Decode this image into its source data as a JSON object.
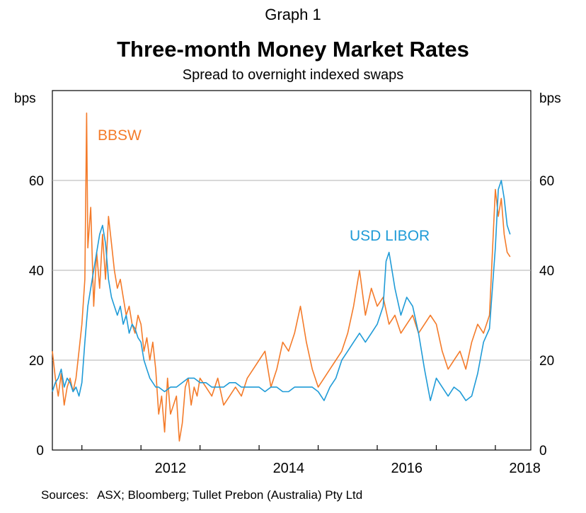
{
  "graph_label": "Graph 1",
  "title": "Three-month Money Market Rates",
  "subtitle": "Spread to overnight indexed swaps",
  "sources_label": "Sources:",
  "sources_text": "ASX; Bloomberg; Tullet Prebon (Australia) Pty Ltd",
  "chart_data": {
    "type": "line",
    "title": "Three-month Money Market Rates",
    "subtitle": "Spread to overnight indexed swaps",
    "ylabel_left": "bps",
    "ylabel_right": "bps",
    "ylim": [
      0,
      80
    ],
    "yticks": [
      0,
      20,
      40,
      60
    ],
    "xlim": [
      2010.5,
      2018.6
    ],
    "xticks": [
      2011,
      2012,
      2013,
      2014,
      2015,
      2016,
      2017,
      2018
    ],
    "xticklabels": [
      "2012",
      "2014",
      "2016",
      "2018"
    ],
    "grid": "horizontal",
    "colors": {
      "BBSW": "#f47b2a",
      "USD LIBOR": "#1f9bd7",
      "grid": "#b0b0b0"
    },
    "series": [
      {
        "name": "BBSW",
        "x": [
          2010.5,
          2010.55,
          2010.6,
          2010.65,
          2010.7,
          2010.75,
          2010.8,
          2010.85,
          2010.9,
          2010.95,
          2011.0,
          2011.05,
          2011.08,
          2011.1,
          2011.15,
          2011.2,
          2011.25,
          2011.3,
          2011.35,
          2011.4,
          2011.45,
          2011.5,
          2011.55,
          2011.6,
          2011.65,
          2011.7,
          2011.75,
          2011.8,
          2011.85,
          2011.9,
          2011.95,
          2012.0,
          2012.05,
          2012.1,
          2012.15,
          2012.2,
          2012.25,
          2012.3,
          2012.35,
          2012.4,
          2012.45,
          2012.5,
          2012.55,
          2012.6,
          2012.65,
          2012.7,
          2012.75,
          2012.8,
          2012.85,
          2012.9,
          2012.95,
          2013.0,
          2013.1,
          2013.2,
          2013.3,
          2013.4,
          2013.5,
          2013.6,
          2013.7,
          2013.8,
          2013.9,
          2014.0,
          2014.1,
          2014.2,
          2014.3,
          2014.4,
          2014.5,
          2014.6,
          2014.7,
          2014.8,
          2014.9,
          2015.0,
          2015.1,
          2015.2,
          2015.3,
          2015.4,
          2015.5,
          2015.6,
          2015.7,
          2015.8,
          2015.9,
          2016.0,
          2016.1,
          2016.2,
          2016.3,
          2016.4,
          2016.5,
          2016.6,
          2016.7,
          2016.8,
          2016.9,
          2017.0,
          2017.1,
          2017.2,
          2017.3,
          2017.4,
          2017.5,
          2017.6,
          2017.7,
          2017.8,
          2017.9,
          2018.0,
          2018.05,
          2018.1,
          2018.15,
          2018.2,
          2018.25
        ],
        "values": [
          22,
          16,
          12,
          17,
          10,
          14,
          16,
          13,
          16,
          22,
          28,
          38,
          75,
          45,
          54,
          32,
          44,
          36,
          48,
          38,
          52,
          46,
          40,
          36,
          38,
          34,
          30,
          32,
          28,
          26,
          30,
          28,
          22,
          25,
          20,
          24,
          18,
          8,
          12,
          4,
          16,
          8,
          10,
          12,
          2,
          6,
          14,
          16,
          10,
          14,
          12,
          16,
          14,
          12,
          16,
          10,
          12,
          14,
          12,
          16,
          18,
          20,
          22,
          14,
          18,
          24,
          22,
          26,
          32,
          24,
          18,
          14,
          16,
          18,
          20,
          22,
          26,
          32,
          40,
          30,
          36,
          32,
          34,
          28,
          30,
          26,
          28,
          30,
          26,
          28,
          30,
          28,
          22,
          18,
          20,
          22,
          18,
          24,
          28,
          26,
          30,
          58,
          52,
          56,
          48,
          44,
          43
        ]
      },
      {
        "name": "USD LIBOR",
        "x": [
          2010.5,
          2010.55,
          2010.6,
          2010.65,
          2010.7,
          2010.75,
          2010.8,
          2010.85,
          2010.9,
          2010.95,
          2011.0,
          2011.05,
          2011.1,
          2011.15,
          2011.2,
          2011.25,
          2011.3,
          2011.35,
          2011.4,
          2011.45,
          2011.5,
          2011.55,
          2011.6,
          2011.65,
          2011.7,
          2011.75,
          2011.8,
          2011.85,
          2011.9,
          2011.95,
          2012.0,
          2012.05,
          2012.1,
          2012.15,
          2012.2,
          2012.25,
          2012.3,
          2012.4,
          2012.5,
          2012.6,
          2012.7,
          2012.8,
          2012.9,
          2013.0,
          2013.1,
          2013.2,
          2013.3,
          2013.4,
          2013.5,
          2013.6,
          2013.7,
          2013.8,
          2013.9,
          2014.0,
          2014.1,
          2014.2,
          2014.3,
          2014.4,
          2014.5,
          2014.6,
          2014.7,
          2014.8,
          2014.9,
          2015.0,
          2015.1,
          2015.2,
          2015.3,
          2015.4,
          2015.5,
          2015.6,
          2015.7,
          2015.8,
          2015.9,
          2016.0,
          2016.05,
          2016.1,
          2016.15,
          2016.2,
          2016.25,
          2016.3,
          2016.4,
          2016.5,
          2016.6,
          2016.7,
          2016.8,
          2016.9,
          2017.0,
          2017.1,
          2017.2,
          2017.3,
          2017.4,
          2017.5,
          2017.6,
          2017.7,
          2017.8,
          2017.9,
          2018.0,
          2018.05,
          2018.1,
          2018.15,
          2018.2,
          2018.25
        ],
        "values": [
          13,
          15,
          16,
          18,
          14,
          16,
          15,
          13,
          14,
          12,
          15,
          24,
          32,
          36,
          40,
          44,
          48,
          50,
          46,
          38,
          34,
          32,
          30,
          32,
          28,
          30,
          26,
          28,
          27,
          25,
          24,
          20,
          18,
          16,
          15,
          14,
          14,
          13,
          14,
          14,
          15,
          16,
          16,
          15,
          15,
          14,
          14,
          14,
          15,
          15,
          14,
          14,
          14,
          14,
          13,
          14,
          14,
          13,
          13,
          14,
          14,
          14,
          14,
          13,
          11,
          14,
          16,
          20,
          22,
          24,
          26,
          24,
          26,
          28,
          30,
          32,
          42,
          44,
          40,
          36,
          30,
          34,
          32,
          26,
          18,
          11,
          16,
          14,
          12,
          14,
          13,
          11,
          12,
          17,
          24,
          27,
          45,
          58,
          60,
          56,
          50,
          48
        ]
      }
    ]
  }
}
